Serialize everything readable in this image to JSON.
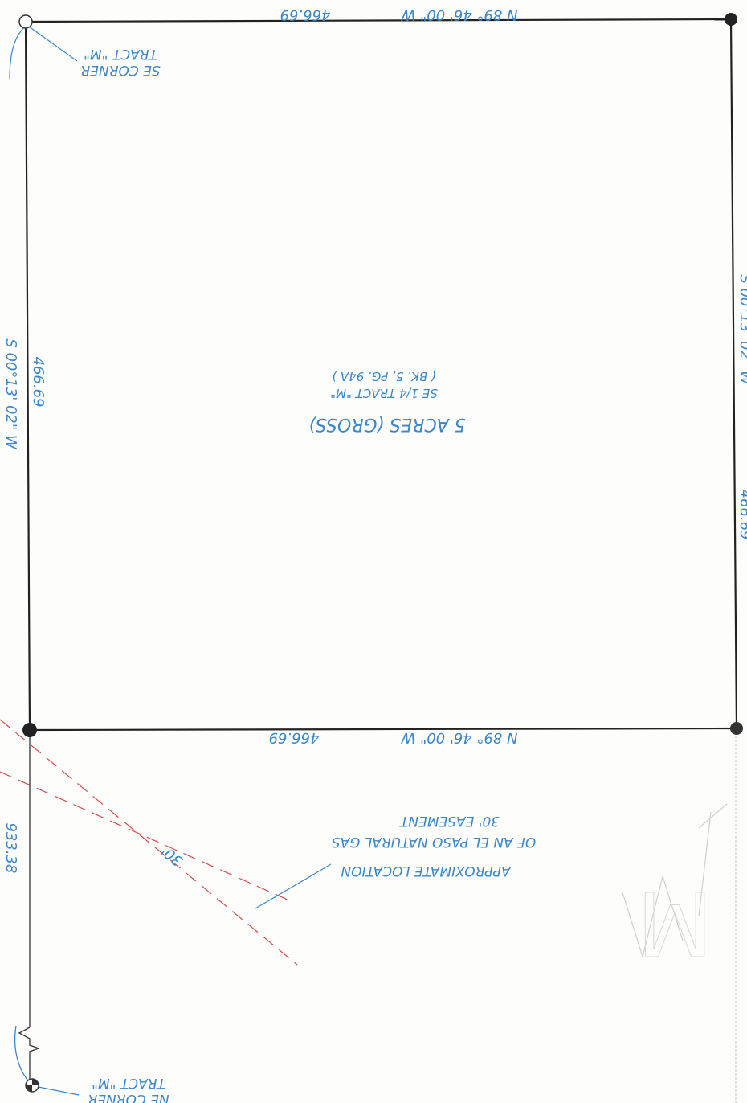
{
  "colors": {
    "ink": "#3a86c8",
    "boundary": "#222222",
    "easement": "#d94a4a",
    "faint": "#cfcfcf"
  },
  "boundary": {
    "top_bearing": "N 89° 46' 00\" W",
    "top_distance": "466.69",
    "bottom_bearing": "N 89° 46' 00\" W",
    "bottom_distance": "466.69",
    "left_bearing": "S 00°13' 02\" W",
    "left_distance": "466.69",
    "right_bearing": "S 00°13' 02\" W",
    "right_distance": "466.69"
  },
  "tract": {
    "line1": "5 ACRES (GROSS)",
    "line2": "SE 1/4 TRACT \"M\"",
    "line3": "( BK. 5, PG. 94A )"
  },
  "easement": {
    "width_label": "30'",
    "note_line1": "APPROXIMATE LOCATION",
    "note_line2": "OF AN EL PASO NATURAL GAS",
    "note_line3": "30' EASEMENT"
  },
  "survey_line": {
    "distance": "933.38"
  },
  "corners": {
    "se_line1": "SE CORNER",
    "se_line2": "TRACT \"M\"",
    "ne_line1": "NE CORNER",
    "ne_line2": "TRACT \"M\""
  },
  "background_mark": "M"
}
